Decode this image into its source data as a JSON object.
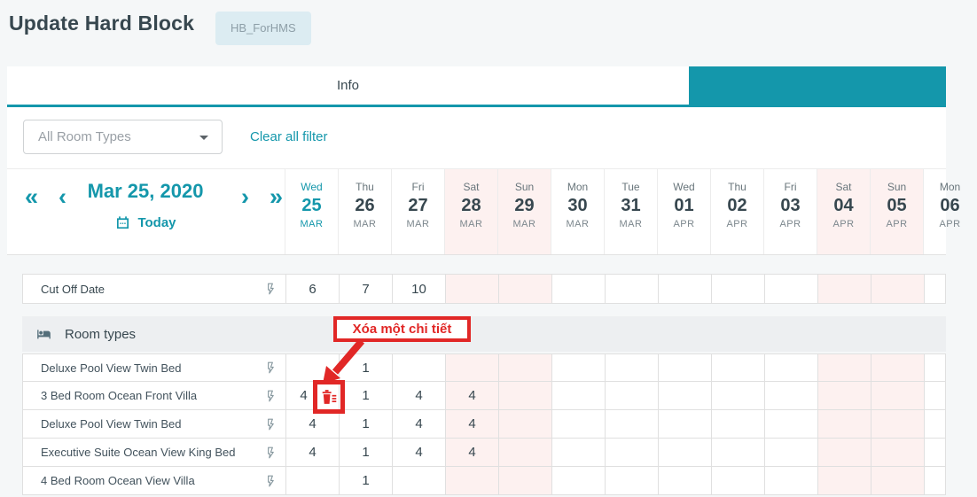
{
  "colors": {
    "accent_teal": "#1497ab",
    "annotation_red": "#e12726",
    "weekend_pink": "#fdf1f0"
  },
  "header": {
    "title": "Update Hard Block",
    "badge": "HB_ForHMS"
  },
  "tabbar": {
    "info_tab": "Info"
  },
  "filterbar": {
    "room_type_filter": "All Room Types",
    "clear_all": "Clear all filter"
  },
  "date_nav": {
    "fast_prev": "«",
    "prev": "‹",
    "label": "Mar 25, 2020",
    "next": "›",
    "fast_next": "»",
    "today": "Today"
  },
  "calendar_columns": [
    {
      "dow": "Wed",
      "day": "25",
      "month": "MAR",
      "today": true,
      "weekend": false
    },
    {
      "dow": "Thu",
      "day": "26",
      "month": "MAR",
      "today": false,
      "weekend": false
    },
    {
      "dow": "Fri",
      "day": "27",
      "month": "MAR",
      "today": false,
      "weekend": false
    },
    {
      "dow": "Sat",
      "day": "28",
      "month": "MAR",
      "today": false,
      "weekend": true
    },
    {
      "dow": "Sun",
      "day": "29",
      "month": "MAR",
      "today": false,
      "weekend": true
    },
    {
      "dow": "Mon",
      "day": "30",
      "month": "MAR",
      "today": false,
      "weekend": false
    },
    {
      "dow": "Tue",
      "day": "31",
      "month": "MAR",
      "today": false,
      "weekend": false
    },
    {
      "dow": "Wed",
      "day": "01",
      "month": "APR",
      "today": false,
      "weekend": false
    },
    {
      "dow": "Thu",
      "day": "02",
      "month": "APR",
      "today": false,
      "weekend": false
    },
    {
      "dow": "Fri",
      "day": "03",
      "month": "APR",
      "today": false,
      "weekend": false
    },
    {
      "dow": "Sat",
      "day": "04",
      "month": "APR",
      "today": false,
      "weekend": true
    },
    {
      "dow": "Sun",
      "day": "05",
      "month": "APR",
      "today": false,
      "weekend": true
    },
    {
      "dow": "Mon",
      "day": "06",
      "month": "APR",
      "today": false,
      "weekend": false
    }
  ],
  "cutoff_row": {
    "label": "Cut Off Date",
    "values": [
      "6",
      "7",
      "10",
      "",
      "",
      "",
      "",
      "",
      "",
      "",
      "",
      "",
      ""
    ]
  },
  "room_section": {
    "label": "Room types"
  },
  "room_rows": [
    {
      "name": "Deluxe Pool View Twin Bed",
      "values": [
        "",
        "1",
        "",
        "",
        "",
        "",
        "",
        "",
        "",
        "",
        "",
        "",
        ""
      ],
      "delete_icon_cell": null
    },
    {
      "name": "3 Bed Room Ocean Front Villa",
      "values": [
        "4",
        "1",
        "4",
        "4",
        "",
        "",
        "",
        "",
        "",
        "",
        "",
        "",
        ""
      ],
      "delete_icon_cell": 0
    },
    {
      "name": "Deluxe Pool View Twin Bed",
      "values": [
        "4",
        "1",
        "4",
        "4",
        "",
        "",
        "",
        "",
        "",
        "",
        "",
        "",
        ""
      ],
      "delete_icon_cell": null
    },
    {
      "name": "Executive Suite Ocean View King Bed",
      "values": [
        "4",
        "1",
        "4",
        "4",
        "",
        "",
        "",
        "",
        "",
        "",
        "",
        "",
        ""
      ],
      "delete_icon_cell": null
    },
    {
      "name": "4 Bed Room Ocean View Villa",
      "values": [
        "",
        "1",
        "",
        "",
        "",
        "",
        "",
        "",
        "",
        "",
        "",
        "",
        ""
      ],
      "delete_icon_cell": null
    }
  ],
  "annotation": {
    "label": "Xóa một chi tiết"
  }
}
